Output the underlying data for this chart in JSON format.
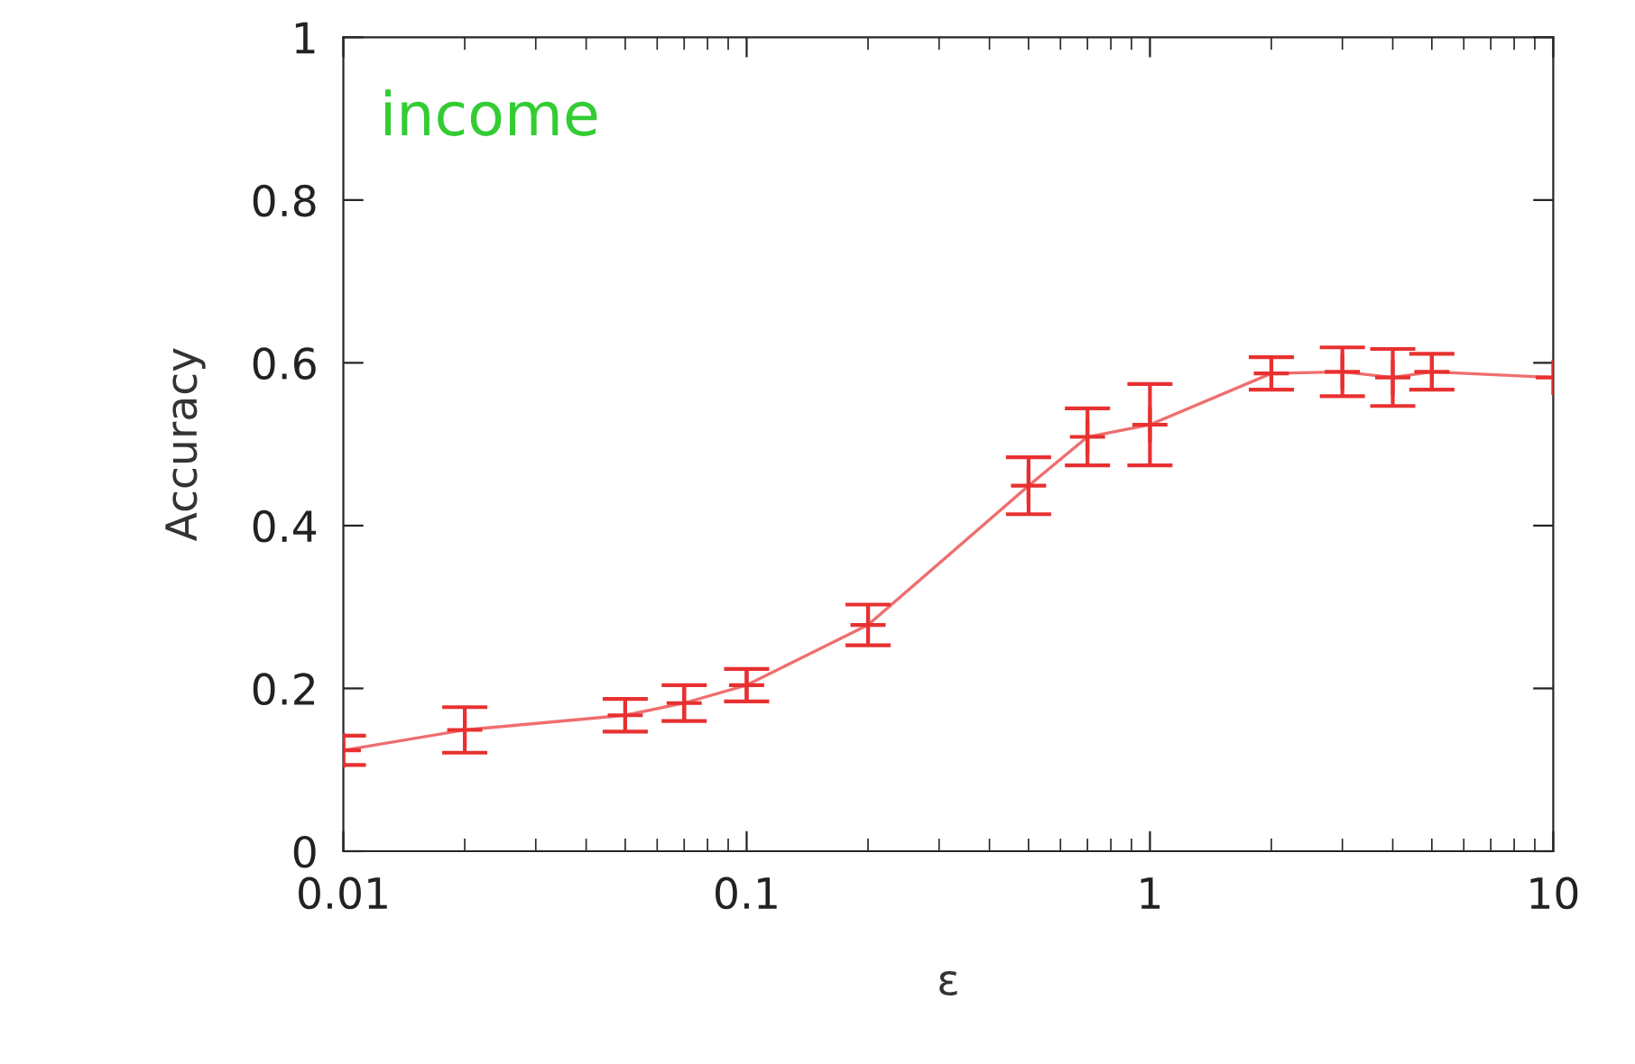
{
  "chart_data": {
    "type": "line",
    "xlabel": "ε",
    "ylabel": "Accuracy",
    "annotations": [
      "income"
    ],
    "log": "x",
    "xlim": [
      0.01,
      10
    ],
    "xticks": [
      0.01,
      0.1,
      1,
      10
    ],
    "ylim": [
      0,
      1
    ],
    "yticks": [
      0,
      0.2,
      0.4,
      0.6,
      0.8,
      1
    ],
    "grid": false,
    "marker": "cross",
    "line_style": "solid",
    "series": [
      {
        "color": "#e83030",
        "x": [
          0.01,
          0.02,
          0.05,
          0.07,
          0.1,
          0.2,
          0.5,
          0.7,
          1,
          2,
          3,
          4,
          5,
          10
        ],
        "values": [
          0.124,
          0.149,
          0.167,
          0.182,
          0.204,
          0.278,
          0.449,
          0.509,
          0.524,
          0.587,
          0.589,
          0.582,
          0.589,
          0.582
        ],
        "errors": [
          0.018,
          0.028,
          0.02,
          0.022,
          0.02,
          0.025,
          0.035,
          0.035,
          0.05,
          0.02,
          0.03,
          0.035,
          0.022,
          null
        ]
      }
    ]
  }
}
